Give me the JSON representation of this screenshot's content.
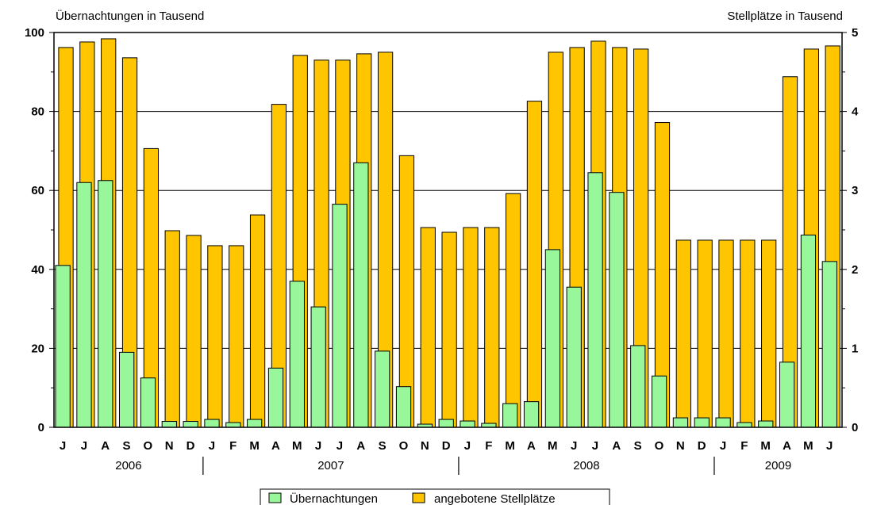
{
  "chart_data": {
    "type": "bar",
    "left_axis_title": "Übernachtungen in Tausend",
    "right_axis_title": "Stellplätze in Tausend",
    "y_left_lim": [
      0,
      100
    ],
    "y_left_ticks": [
      "0",
      "20",
      "40",
      "60",
      "80",
      "100"
    ],
    "y_right_lim": [
      0,
      5
    ],
    "y_right_ticks": [
      "0",
      "1",
      "2",
      "3",
      "4",
      "5"
    ],
    "grid": true,
    "months": [
      "J",
      "J",
      "A",
      "S",
      "O",
      "N",
      "D",
      "J",
      "F",
      "M",
      "A",
      "M",
      "J",
      "J",
      "A",
      "S",
      "O",
      "N",
      "D",
      "J",
      "F",
      "M",
      "A",
      "M",
      "J",
      "J",
      "A",
      "S",
      "O",
      "N",
      "D",
      "J",
      "F",
      "M",
      "A",
      "M",
      "J"
    ],
    "years": [
      {
        "label": "2006",
        "start": 0,
        "end": 6
      },
      {
        "label": "2007",
        "start": 7,
        "end": 18
      },
      {
        "label": "2008",
        "start": 19,
        "end": 30
      },
      {
        "label": "2009",
        "start": 31,
        "end": 36
      }
    ],
    "series": [
      {
        "name": "Übernachtungen",
        "axis": "left",
        "color": "#99f79b",
        "values": [
          41,
          62,
          62.5,
          19,
          12.5,
          1.5,
          1.5,
          2,
          1.2,
          2,
          15,
          37,
          30.5,
          56.5,
          67,
          19.3,
          10.3,
          0.8,
          2,
          1.6,
          1,
          6,
          6.5,
          45,
          35.5,
          64.5,
          59.5,
          20.7,
          13,
          2.4,
          2.4,
          2.4,
          1.2,
          1.6,
          16.5,
          48.7,
          42
        ]
      },
      {
        "name": "angebotene Stellplätze",
        "axis": "right",
        "color": "#ffc600",
        "values": [
          4.81,
          4.88,
          4.92,
          4.68,
          3.53,
          2.49,
          2.43,
          2.3,
          2.3,
          2.69,
          4.09,
          4.71,
          4.65,
          4.65,
          4.73,
          4.75,
          3.44,
          2.53,
          2.47,
          2.53,
          2.53,
          2.96,
          4.13,
          4.75,
          4.81,
          4.89,
          4.81,
          4.79,
          3.86,
          2.37,
          2.37,
          2.37,
          2.37,
          2.37,
          4.44,
          4.79,
          4.83
        ]
      }
    ],
    "legend_position": "bottom-center"
  }
}
